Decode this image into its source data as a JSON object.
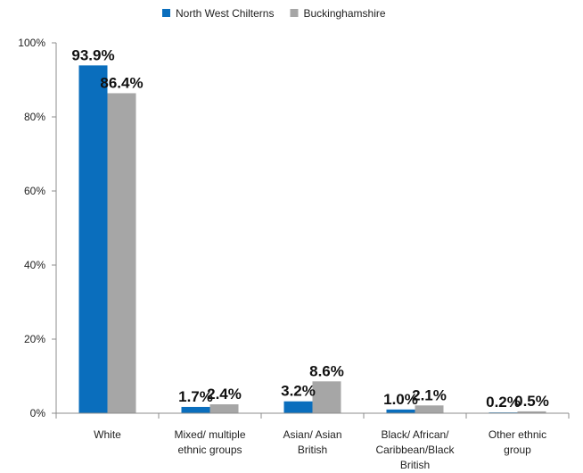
{
  "chart_data": {
    "type": "bar",
    "categories": [
      [
        "White"
      ],
      [
        "Mixed/ multiple",
        "ethnic groups"
      ],
      [
        "Asian/ Asian",
        "British"
      ],
      [
        "Black/ African/",
        "Caribbean/Black",
        "British"
      ],
      [
        "Other ethnic",
        "group"
      ]
    ],
    "series": [
      {
        "name": "North West Chilterns",
        "color": "#0a6ebd",
        "values": [
          93.9,
          1.7,
          3.2,
          1.0,
          0.2
        ],
        "labels": [
          "93.9%",
          "1.7%",
          "3.2%",
          "1.0%",
          "0.2%"
        ]
      },
      {
        "name": "Buckinghamshire",
        "color": "#a6a6a6",
        "values": [
          86.4,
          2.4,
          8.6,
          2.1,
          0.5
        ],
        "labels": [
          "86.4%",
          "2.4%",
          "8.6%",
          "2.1%",
          "0.5%"
        ]
      }
    ],
    "ylim": [
      0,
      100
    ],
    "yticks": [
      {
        "value": 0,
        "label": "0%"
      },
      {
        "value": 20,
        "label": "20%"
      },
      {
        "value": 40,
        "label": "40%"
      },
      {
        "value": 60,
        "label": "60%"
      },
      {
        "value": 80,
        "label": "80%"
      },
      {
        "value": 100,
        "label": "100%"
      }
    ],
    "legend_position": "top-center",
    "grid": false
  }
}
